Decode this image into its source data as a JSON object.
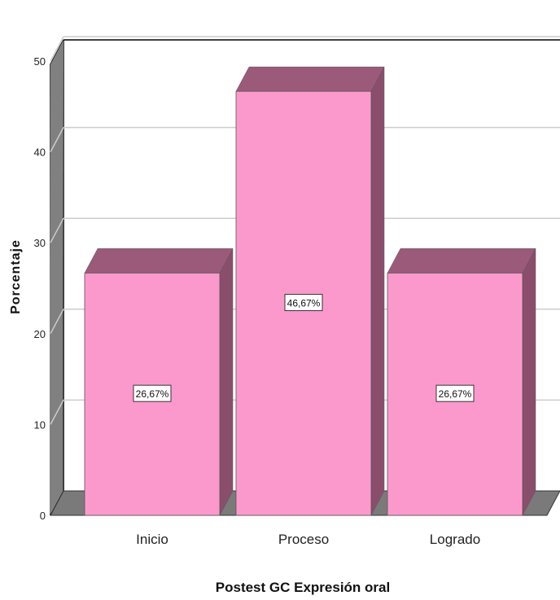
{
  "chart_data": {
    "type": "bar",
    "categories": [
      "Inicio",
      "Proceso",
      "Logrado"
    ],
    "values": [
      26.67,
      46.67,
      26.67
    ],
    "data_labels": [
      "26,67%",
      "46,67%",
      "26,67%"
    ],
    "xlabel": "Postest GC Expresión oral",
    "ylabel": "Porcentaje",
    "ylim": [
      0,
      50
    ],
    "yticks": [
      "0",
      "10",
      "20",
      "30",
      "40",
      "50"
    ],
    "grid": true,
    "legend": "none",
    "style": "3d",
    "colors": {
      "bar_front": "#fc99cc",
      "bar_top": "#9c5a7a",
      "bar_side": "#8a4e6c",
      "floor": "#7a7a7a",
      "wall_side": "#808080",
      "gridline": "#cccccc"
    }
  }
}
